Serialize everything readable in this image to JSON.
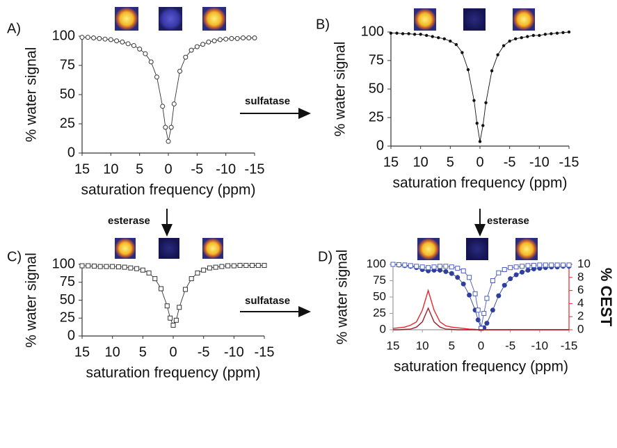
{
  "chart_data": [
    {
      "type": "line",
      "label": "A)",
      "y_label": "% water signal",
      "x_label": "saturation frequency (ppm)",
      "x": [
        15,
        14,
        13,
        12,
        11,
        10,
        9,
        8,
        7,
        6,
        5,
        4,
        3,
        2,
        1,
        0.5,
        0,
        -0.5,
        -1,
        -2,
        -3,
        -4,
        -5,
        -6,
        -7,
        -8,
        -9,
        -10,
        -11,
        -12,
        -13,
        -14,
        -15
      ],
      "xlim": [
        15,
        -15
      ],
      "xticks": [
        15,
        10,
        5,
        0,
        -5,
        -10,
        -15
      ],
      "ylim": [
        0,
        100
      ],
      "yticks": [
        0,
        25,
        50,
        75,
        100
      ],
      "series": [
        {
          "color": "#333333",
          "marker": "circle-open",
          "values": [
            99,
            99,
            98.5,
            98,
            97.5,
            97,
            96,
            95,
            93.5,
            92,
            89,
            85,
            78,
            65,
            40,
            22,
            10,
            22,
            42,
            70,
            82,
            88,
            91,
            93,
            95,
            96,
            97,
            97.5,
            98,
            98,
            98.5,
            98.5,
            98.5
          ]
        }
      ]
    },
    {
      "type": "line",
      "label": "B)",
      "y_label": "% water signal",
      "x_label": "saturation frequency (ppm)",
      "x": [
        15,
        14,
        13,
        12,
        11,
        10,
        9,
        8,
        7,
        6,
        5,
        4,
        3,
        2,
        1,
        0.5,
        0,
        -0.5,
        -1,
        -2,
        -3,
        -4,
        -5,
        -6,
        -7,
        -8,
        -9,
        -10,
        -11,
        -12,
        -13,
        -14,
        -15
      ],
      "xlim": [
        15,
        -15
      ],
      "xticks": [
        15,
        10,
        5,
        0,
        -5,
        -10,
        -15
      ],
      "ylim": [
        0,
        100
      ],
      "yticks": [
        0,
        25,
        50,
        75,
        100
      ],
      "series": [
        {
          "color": "#111111",
          "marker": "circle-filled",
          "values": [
            99,
            99,
            98.5,
            98.5,
            98,
            98,
            97,
            96,
            95,
            94,
            92,
            89,
            82,
            67,
            40,
            20,
            4,
            18,
            38,
            66,
            80,
            88,
            92,
            94,
            95,
            96,
            97,
            97,
            98,
            98.5,
            99,
            99.5,
            100
          ]
        }
      ]
    },
    {
      "type": "line",
      "label": "C)",
      "y_label": "% water signal",
      "x_label": "saturation frequency (ppm)",
      "x": [
        15,
        14,
        13,
        12,
        11,
        10,
        9,
        8,
        7,
        6,
        5,
        4,
        3,
        2,
        1,
        0.5,
        0,
        -0.5,
        -1,
        -2,
        -3,
        -4,
        -5,
        -6,
        -7,
        -8,
        -9,
        -10,
        -11,
        -12,
        -13,
        -14,
        -15
      ],
      "xlim": [
        15,
        -15
      ],
      "xticks": [
        15,
        10,
        5,
        0,
        -5,
        -10,
        -15
      ],
      "ylim": [
        0,
        100
      ],
      "yticks": [
        0,
        25,
        50,
        75,
        100
      ],
      "series": [
        {
          "color": "#333333",
          "marker": "square-open",
          "values": [
            98,
            98,
            97.5,
            97,
            97,
            97,
            96.5,
            96,
            95,
            94,
            92,
            88,
            80,
            66,
            42,
            25,
            15,
            22,
            40,
            65,
            80,
            88,
            92,
            95,
            96,
            97,
            98,
            98,
            98.5,
            98.5,
            98.5,
            98.5,
            98.5
          ]
        }
      ]
    },
    {
      "type": "line",
      "label": "D)",
      "y_label": "% water  signal",
      "y2_label": "% CEST",
      "x_label": "saturation frequency (ppm)",
      "x": [
        15,
        14,
        13,
        12,
        11,
        10,
        9,
        8,
        7,
        6,
        5,
        4,
        3,
        2,
        1,
        0.5,
        0,
        -0.5,
        -1,
        -2,
        -3,
        -4,
        -5,
        -6,
        -7,
        -8,
        -9,
        -10,
        -11,
        -12,
        -13,
        -14,
        -15
      ],
      "xlim": [
        15,
        -15
      ],
      "xticks": [
        15,
        10,
        5,
        0,
        -5,
        -10,
        -15
      ],
      "ylim": [
        0,
        100
      ],
      "yticks": [
        0,
        25,
        50,
        75,
        100
      ],
      "y2lim": [
        0,
        10
      ],
      "y2ticks": [
        0,
        2,
        4,
        6,
        8,
        10
      ],
      "series": [
        {
          "color": "#2e3f9e",
          "marker": "circle-filled",
          "values": [
            100,
            99,
            98,
            97,
            95,
            92,
            90,
            91,
            91,
            89,
            86,
            80,
            70,
            53,
            30,
            15,
            3,
            3,
            10,
            30,
            52,
            68,
            78,
            84,
            88,
            91,
            93,
            94,
            95,
            96,
            96,
            97,
            97
          ]
        },
        {
          "color": "#4a5cc0",
          "marker": "square-open",
          "values": [
            100,
            99.5,
            99,
            98,
            97,
            96,
            95,
            96,
            97,
            97,
            96,
            94,
            90,
            80,
            55,
            30,
            2,
            25,
            48,
            75,
            87,
            92,
            95,
            96,
            97,
            98,
            98.5,
            99,
            99,
            99,
            99,
            99,
            99
          ]
        },
        {
          "color": "#e8262b",
          "marker": "none",
          "axis": "y2",
          "values": [
            0.2,
            0.3,
            0.4,
            0.7,
            1.2,
            3,
            6,
            3,
            1.2,
            0.6,
            0.4,
            0.3,
            0.2,
            0.1,
            0.05,
            0,
            0,
            0,
            0,
            0,
            0,
            0,
            0,
            0,
            0,
            0,
            0,
            0,
            0,
            0,
            0,
            0,
            0
          ]
        },
        {
          "color": "#a01c2a",
          "marker": "none",
          "axis": "y2",
          "values": [
            0,
            0,
            0.05,
            0.1,
            0.4,
            1.2,
            3.3,
            1.2,
            0.4,
            0.1,
            0.05,
            0,
            0,
            0,
            0,
            0,
            0,
            0,
            0,
            0,
            0,
            0,
            0,
            0,
            0,
            0,
            0,
            0,
            0,
            0,
            0,
            0,
            0
          ]
        }
      ]
    }
  ],
  "annotations": [
    "sulfatase",
    "esterase",
    "esterase",
    "sulfatase"
  ]
}
